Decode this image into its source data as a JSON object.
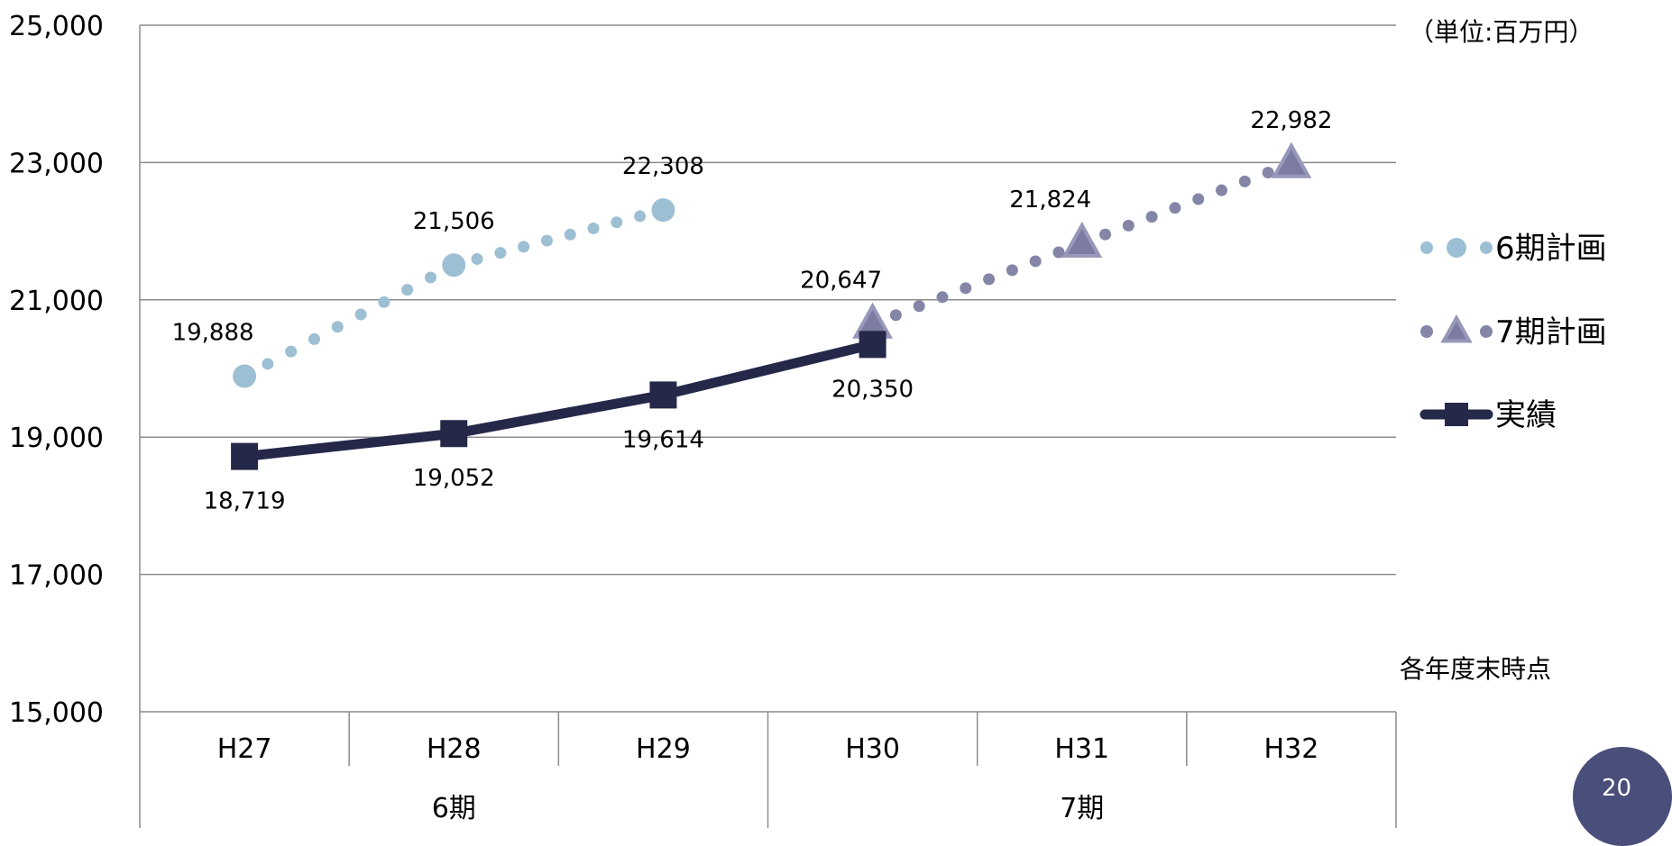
{
  "unit_note": "（単位:百万円）",
  "footnote": "各年度末時点",
  "page_number": "20",
  "chart_data": {
    "type": "line",
    "categories": [
      "H27",
      "H28",
      "H29",
      "H30",
      "H31",
      "H32"
    ],
    "groups": [
      {
        "label": "6期",
        "span": [
          0,
          2
        ]
      },
      {
        "label": "7期",
        "span": [
          3,
          5
        ]
      }
    ],
    "ylim": [
      15000,
      25000
    ],
    "yticks": [
      15000,
      17000,
      19000,
      21000,
      23000,
      25000
    ],
    "ytick_labels": [
      "15,000",
      "17,000",
      "19,000",
      "21,000",
      "23,000",
      "25,000"
    ],
    "grid": true,
    "legend_position": "right",
    "series": [
      {
        "name": "6期計画",
        "style": "dotted",
        "marker": "circle",
        "color": "#9dbfd3",
        "x": [
          0,
          1,
          2
        ],
        "values": [
          19888,
          21506,
          22308
        ],
        "labels": [
          "19,888",
          "21,506",
          "22,308"
        ],
        "label_position": [
          "left-above",
          "above",
          "above"
        ]
      },
      {
        "name": "7期計画",
        "style": "dotted",
        "marker": "triangle",
        "color": "#8585a8",
        "x": [
          3,
          4,
          5
        ],
        "values": [
          20647,
          21824,
          22982
        ],
        "labels": [
          "20,647",
          "21,824",
          "22,982"
        ],
        "label_position": [
          "left-above",
          "left-above",
          "above"
        ]
      },
      {
        "name": "実績",
        "style": "solid",
        "marker": "square",
        "color": "#26284a",
        "x": [
          0,
          1,
          2,
          3
        ],
        "values": [
          18719,
          19052,
          19614,
          20350
        ],
        "labels": [
          "18,719",
          "19,052",
          "19,614",
          "20,350"
        ],
        "label_position": [
          "below",
          "below",
          "below",
          "below"
        ]
      }
    ]
  }
}
